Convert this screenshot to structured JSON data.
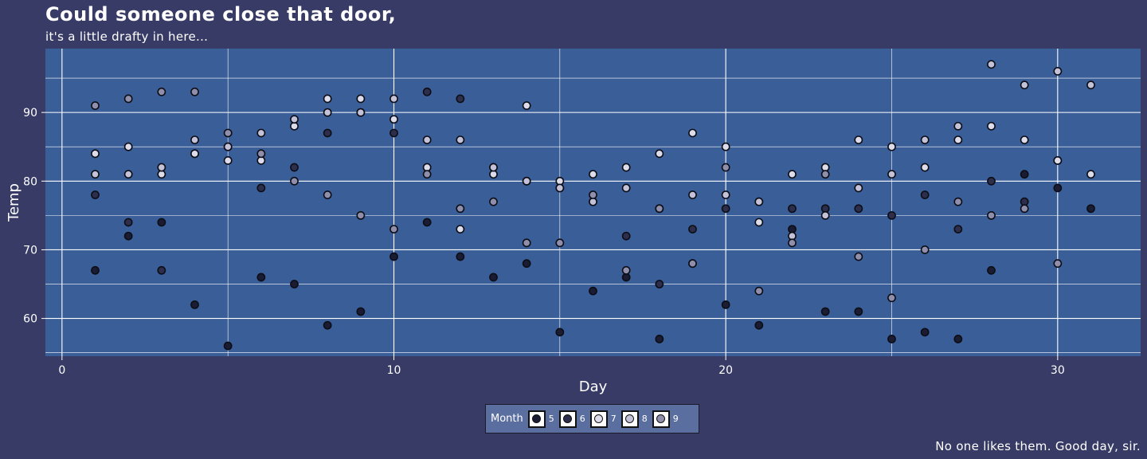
{
  "title": "Could someone close that door,",
  "subtitle": "it's a little drafty in here...",
  "caption": "No one likes them. Good day, sir.",
  "colors": {
    "background": "#383b66",
    "panel": "#3a5e98",
    "grid": "#ffffff",
    "legend_bg": "#5b6ea0"
  },
  "legend": {
    "title": "Month",
    "items": [
      {
        "label": "5",
        "color": "#1a1c33"
      },
      {
        "label": "6",
        "color": "#2c2e4b"
      },
      {
        "label": "7",
        "color": "#dcdceb"
      },
      {
        "label": "8",
        "color": "#c4c2d8"
      },
      {
        "label": "9",
        "color": "#8f8fac"
      }
    ]
  },
  "chart_data": {
    "type": "scatter",
    "title": "Could someone close that door,",
    "subtitle": "it's a little drafty in here...",
    "xlabel": "Day",
    "ylabel": "Temp",
    "xlim": [
      -0.5,
      32.5
    ],
    "ylim": [
      54.5,
      99.3
    ],
    "x_ticks": [
      0,
      10,
      20,
      30
    ],
    "y_ticks": [
      60,
      70,
      80,
      90
    ],
    "grid": true,
    "legend_position": "bottom",
    "series": [
      {
        "name": "5",
        "color": "#1a1c33",
        "points": [
          [
            1,
            67
          ],
          [
            2,
            72
          ],
          [
            3,
            74
          ],
          [
            4,
            62
          ],
          [
            5,
            56
          ],
          [
            6,
            66
          ],
          [
            7,
            65
          ],
          [
            8,
            59
          ],
          [
            9,
            61
          ],
          [
            10,
            69
          ],
          [
            11,
            74
          ],
          [
            12,
            69
          ],
          [
            13,
            66
          ],
          [
            14,
            68
          ],
          [
            15,
            58
          ],
          [
            16,
            64
          ],
          [
            17,
            66
          ],
          [
            18,
            57
          ],
          [
            19,
            68
          ],
          [
            20,
            62
          ],
          [
            21,
            59
          ],
          [
            22,
            73
          ],
          [
            23,
            61
          ],
          [
            24,
            61
          ],
          [
            25,
            57
          ],
          [
            26,
            58
          ],
          [
            27,
            57
          ],
          [
            28,
            67
          ],
          [
            29,
            81
          ],
          [
            30,
            79
          ],
          [
            31,
            76
          ]
        ]
      },
      {
        "name": "6",
        "color": "#2c2e4b",
        "points": [
          [
            1,
            78
          ],
          [
            2,
            74
          ],
          [
            3,
            67
          ],
          [
            4,
            84
          ],
          [
            5,
            85
          ],
          [
            6,
            79
          ],
          [
            7,
            82
          ],
          [
            8,
            87
          ],
          [
            9,
            90
          ],
          [
            10,
            87
          ],
          [
            11,
            93
          ],
          [
            12,
            92
          ],
          [
            13,
            82
          ],
          [
            14,
            80
          ],
          [
            15,
            79
          ],
          [
            16,
            77
          ],
          [
            17,
            72
          ],
          [
            18,
            65
          ],
          [
            19,
            73
          ],
          [
            20,
            76
          ],
          [
            21,
            77
          ],
          [
            22,
            76
          ],
          [
            23,
            76
          ],
          [
            24,
            76
          ],
          [
            25,
            75
          ],
          [
            26,
            78
          ],
          [
            27,
            73
          ],
          [
            28,
            80
          ],
          [
            29,
            77
          ],
          [
            30,
            83
          ]
        ]
      },
      {
        "name": "7",
        "color": "#dcdceb",
        "points": [
          [
            1,
            84
          ],
          [
            2,
            85
          ],
          [
            3,
            81
          ],
          [
            4,
            84
          ],
          [
            5,
            83
          ],
          [
            6,
            83
          ],
          [
            7,
            88
          ],
          [
            8,
            92
          ],
          [
            9,
            92
          ],
          [
            10,
            89
          ],
          [
            11,
            82
          ],
          [
            12,
            73
          ],
          [
            13,
            81
          ],
          [
            14,
            91
          ],
          [
            15,
            80
          ],
          [
            16,
            81
          ],
          [
            17,
            82
          ],
          [
            18,
            84
          ],
          [
            19,
            87
          ],
          [
            20,
            85
          ],
          [
            21,
            74
          ],
          [
            22,
            81
          ],
          [
            23,
            82
          ],
          [
            24,
            86
          ],
          [
            25,
            85
          ],
          [
            26,
            82
          ],
          [
            27,
            86
          ],
          [
            28,
            88
          ],
          [
            29,
            86
          ],
          [
            30,
            83
          ],
          [
            31,
            81
          ]
        ]
      },
      {
        "name": "8",
        "color": "#c4c2d8",
        "points": [
          [
            1,
            81
          ],
          [
            2,
            81
          ],
          [
            3,
            82
          ],
          [
            4,
            86
          ],
          [
            5,
            85
          ],
          [
            6,
            87
          ],
          [
            7,
            89
          ],
          [
            8,
            90
          ],
          [
            9,
            90
          ],
          [
            10,
            92
          ],
          [
            11,
            86
          ],
          [
            12,
            86
          ],
          [
            13,
            82
          ],
          [
            14,
            80
          ],
          [
            15,
            79
          ],
          [
            16,
            77
          ],
          [
            17,
            79
          ],
          [
            18,
            76
          ],
          [
            19,
            78
          ],
          [
            20,
            78
          ],
          [
            21,
            77
          ],
          [
            22,
            72
          ],
          [
            23,
            75
          ],
          [
            24,
            79
          ],
          [
            25,
            81
          ],
          [
            26,
            86
          ],
          [
            27,
            88
          ],
          [
            28,
            97
          ],
          [
            29,
            94
          ],
          [
            30,
            96
          ],
          [
            31,
            94
          ]
        ]
      },
      {
        "name": "9",
        "color": "#8f8fac",
        "points": [
          [
            1,
            91
          ],
          [
            2,
            92
          ],
          [
            3,
            93
          ],
          [
            4,
            93
          ],
          [
            5,
            87
          ],
          [
            6,
            84
          ],
          [
            7,
            80
          ],
          [
            8,
            78
          ],
          [
            9,
            75
          ],
          [
            10,
            73
          ],
          [
            11,
            81
          ],
          [
            12,
            76
          ],
          [
            13,
            77
          ],
          [
            14,
            71
          ],
          [
            15,
            71
          ],
          [
            16,
            78
          ],
          [
            17,
            67
          ],
          [
            18,
            76
          ],
          [
            19,
            68
          ],
          [
            20,
            82
          ],
          [
            21,
            64
          ],
          [
            22,
            71
          ],
          [
            23,
            81
          ],
          [
            24,
            69
          ],
          [
            25,
            63
          ],
          [
            26,
            70
          ],
          [
            27,
            77
          ],
          [
            28,
            75
          ],
          [
            29,
            76
          ],
          [
            30,
            68
          ]
        ]
      }
    ]
  }
}
